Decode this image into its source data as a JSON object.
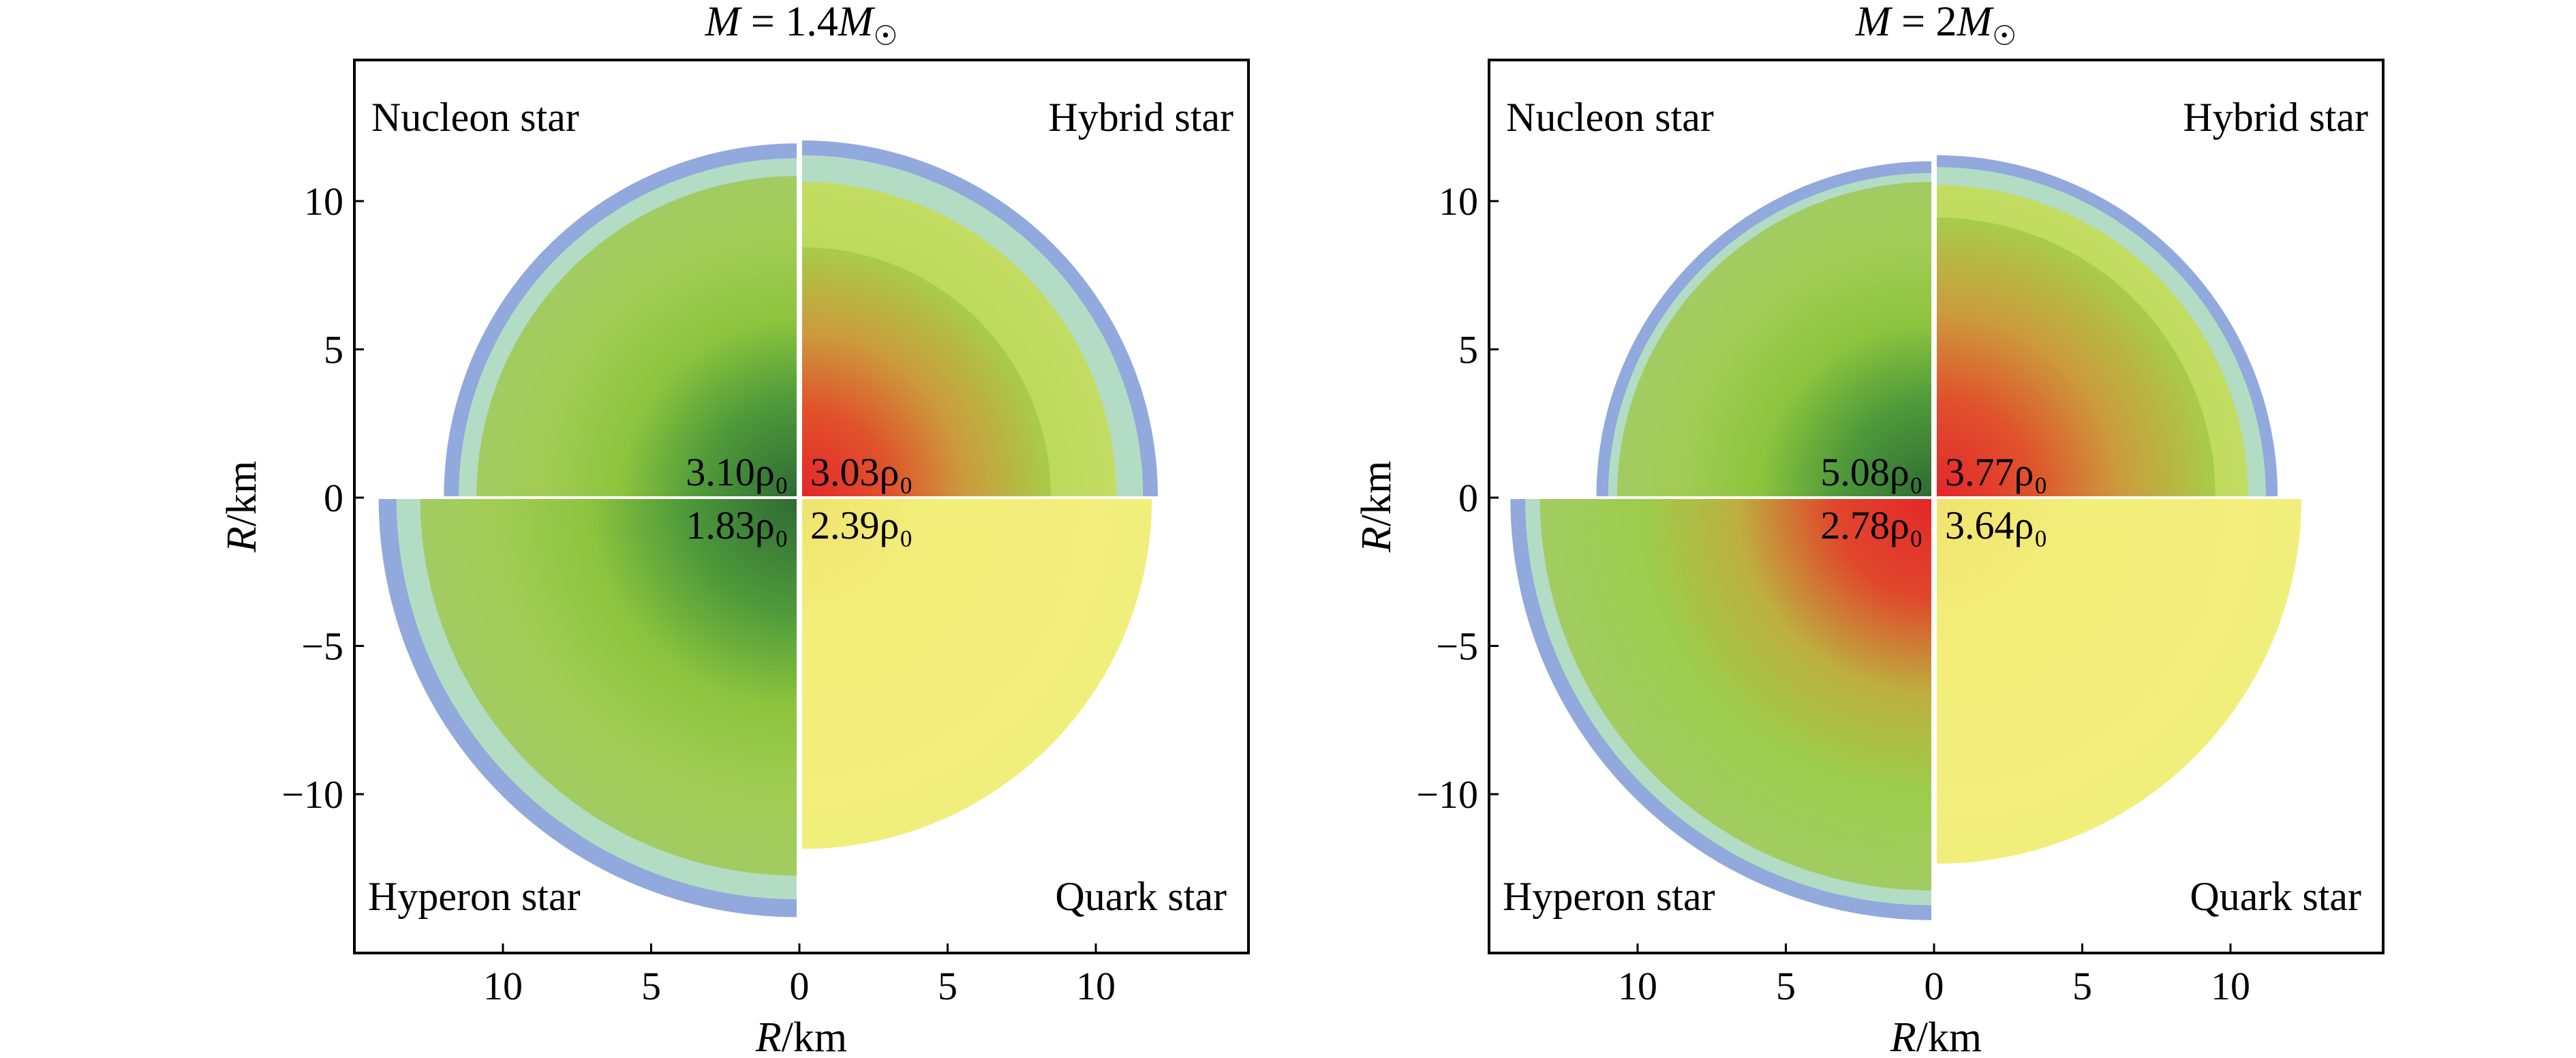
{
  "chart_data": [
    {
      "type": "other",
      "title": "M = 1.4M☉",
      "xlabel": "R/km",
      "ylabel": "R/km",
      "xlim": [
        -15,
        15
      ],
      "ylim": [
        -15,
        15
      ],
      "xticks": [
        10,
        5,
        0,
        5,
        10
      ],
      "yticks": [
        10,
        5,
        0,
        -5,
        -10
      ],
      "grid": false,
      "quadrants": [
        {
          "label": "Nucleon star",
          "position": "top-left",
          "surface_radius_km": 11.9,
          "inner_crust_radius_km": 11.4,
          "core_radius_km": 10.8,
          "central_density": "3.10ρ₀",
          "center_color": "#2f6b35"
        },
        {
          "label": "Hybrid star",
          "position": "top-right",
          "surface_radius_km": 12.0,
          "inner_crust_radius_km": 11.5,
          "core_radius_km": 10.6,
          "quark_core_radius_km": 8.4,
          "central_density": "3.03ρ₀",
          "center_color": "#e5262a"
        },
        {
          "label": "Hyperon star",
          "position": "bottom-left",
          "surface_radius_km": 14.1,
          "inner_crust_radius_km": 13.5,
          "core_radius_km": 12.7,
          "central_density": "1.83ρ₀",
          "center_color": "#3a7a38"
        },
        {
          "label": "Quark star",
          "position": "bottom-right",
          "surface_radius_km": 11.8,
          "central_density": "2.39ρ₀",
          "center_color": "#f3ee7a"
        }
      ]
    },
    {
      "type": "other",
      "title": "M = 2M☉",
      "xlabel": "R/km",
      "ylabel": "R/km",
      "xlim": [
        -15,
        15
      ],
      "ylim": [
        -15,
        15
      ],
      "xticks": [
        10,
        5,
        0,
        5,
        10
      ],
      "yticks": [
        10,
        5,
        0,
        -5,
        -10
      ],
      "grid": false,
      "quadrants": [
        {
          "label": "Nucleon star",
          "position": "top-left",
          "surface_radius_km": 11.3,
          "inner_crust_radius_km": 10.9,
          "core_radius_km": 10.6,
          "central_density": "5.08ρ₀",
          "center_color": "#2f6b35"
        },
        {
          "label": "Hybrid star",
          "position": "top-right",
          "surface_radius_km": 11.5,
          "inner_crust_radius_km": 11.1,
          "core_radius_km": 10.5,
          "quark_core_radius_km": 9.4,
          "central_density": "3.77ρ₀",
          "center_color": "#e5262a"
        },
        {
          "label": "Hyperon star",
          "position": "bottom-left",
          "surface_radius_km": 14.2,
          "inner_crust_radius_km": 13.7,
          "core_radius_km": 13.2,
          "central_density": "2.78ρ₀",
          "center_color": "#e5262a"
        },
        {
          "label": "Quark star",
          "position": "bottom-right",
          "surface_radius_km": 12.3,
          "central_density": "3.64ρ₀",
          "center_color": "#f3ee7a"
        }
      ]
    }
  ],
  "colors": {
    "crust_outer": "#91a9dd",
    "crust_inner": "#b3dcc4",
    "nucleon_green": "#a2cc62",
    "quark_yellow": "#f3ee7a",
    "red": "#e5262a",
    "dark_green": "#2f6b35"
  }
}
